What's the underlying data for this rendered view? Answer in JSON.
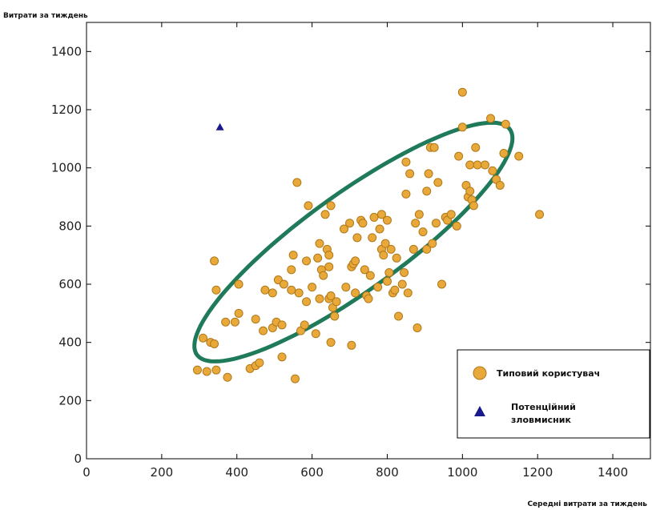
{
  "chart_data": {
    "type": "scatter",
    "ylabel": "Витрати за тиждень",
    "xlabel": "Середні витрати за тиждень",
    "xlim": [
      0,
      1500
    ],
    "ylim": [
      0,
      1500
    ],
    "xticks": [
      "0",
      "200",
      "400",
      "600",
      "800",
      "1000",
      "1200",
      "1400"
    ],
    "yticks": [
      "0",
      "200",
      "400",
      "600",
      "800",
      "1000",
      "1200",
      "1400"
    ],
    "legend_position": "bottom-right",
    "colors": {
      "typical": "#e8a93a",
      "typical_edge": "#b07818",
      "malicious": "#1a1a8c",
      "ellipse": "#1f7a5a"
    },
    "series": [
      {
        "name": "Типовий користувач",
        "marker": "circle",
        "points": [
          [
            295,
            305
          ],
          [
            320,
            300
          ],
          [
            345,
            305
          ],
          [
            375,
            280
          ],
          [
            310,
            415
          ],
          [
            330,
            400
          ],
          [
            340,
            395
          ],
          [
            345,
            580
          ],
          [
            340,
            680
          ],
          [
            370,
            470
          ],
          [
            395,
            470
          ],
          [
            405,
            500
          ],
          [
            405,
            600
          ],
          [
            435,
            310
          ],
          [
            450,
            320
          ],
          [
            460,
            330
          ],
          [
            450,
            480
          ],
          [
            470,
            440
          ],
          [
            475,
            580
          ],
          [
            495,
            570
          ],
          [
            495,
            450
          ],
          [
            505,
            470
          ],
          [
            510,
            615
          ],
          [
            520,
            350
          ],
          [
            520,
            460
          ],
          [
            525,
            600
          ],
          [
            545,
            580
          ],
          [
            545,
            650
          ],
          [
            550,
            700
          ],
          [
            555,
            275
          ],
          [
            560,
            950
          ],
          [
            565,
            570
          ],
          [
            570,
            440
          ],
          [
            580,
            460
          ],
          [
            585,
            540
          ],
          [
            585,
            680
          ],
          [
            590,
            870
          ],
          [
            600,
            590
          ],
          [
            610,
            430
          ],
          [
            615,
            690
          ],
          [
            620,
            740
          ],
          [
            620,
            550
          ],
          [
            625,
            650
          ],
          [
            630,
            630
          ],
          [
            635,
            840
          ],
          [
            640,
            720
          ],
          [
            645,
            700
          ],
          [
            645,
            660
          ],
          [
            645,
            550
          ],
          [
            650,
            560
          ],
          [
            650,
            400
          ],
          [
            650,
            870
          ],
          [
            655,
            520
          ],
          [
            660,
            490
          ],
          [
            665,
            540
          ],
          [
            685,
            790
          ],
          [
            690,
            590
          ],
          [
            700,
            810
          ],
          [
            705,
            390
          ],
          [
            705,
            660
          ],
          [
            710,
            670
          ],
          [
            715,
            570
          ],
          [
            715,
            680
          ],
          [
            720,
            760
          ],
          [
            730,
            820
          ],
          [
            735,
            810
          ],
          [
            740,
            650
          ],
          [
            745,
            560
          ],
          [
            750,
            550
          ],
          [
            755,
            630
          ],
          [
            760,
            760
          ],
          [
            765,
            830
          ],
          [
            775,
            590
          ],
          [
            780,
            790
          ],
          [
            785,
            840
          ],
          [
            785,
            720
          ],
          [
            790,
            700
          ],
          [
            795,
            740
          ],
          [
            800,
            610
          ],
          [
            800,
            820
          ],
          [
            805,
            640
          ],
          [
            810,
            720
          ],
          [
            815,
            570
          ],
          [
            820,
            580
          ],
          [
            825,
            690
          ],
          [
            830,
            490
          ],
          [
            840,
            600
          ],
          [
            845,
            640
          ],
          [
            850,
            1020
          ],
          [
            850,
            910
          ],
          [
            855,
            570
          ],
          [
            860,
            980
          ],
          [
            870,
            720
          ],
          [
            875,
            810
          ],
          [
            880,
            450
          ],
          [
            885,
            840
          ],
          [
            895,
            780
          ],
          [
            905,
            920
          ],
          [
            905,
            720
          ],
          [
            910,
            980
          ],
          [
            915,
            1070
          ],
          [
            920,
            740
          ],
          [
            925,
            1070
          ],
          [
            930,
            810
          ],
          [
            935,
            950
          ],
          [
            945,
            600
          ],
          [
            955,
            830
          ],
          [
            960,
            820
          ],
          [
            970,
            840
          ],
          [
            985,
            800
          ],
          [
            990,
            1040
          ],
          [
            1000,
            1140
          ],
          [
            1000,
            1260
          ],
          [
            1010,
            940
          ],
          [
            1015,
            900
          ],
          [
            1020,
            1010
          ],
          [
            1020,
            920
          ],
          [
            1025,
            890
          ],
          [
            1030,
            870
          ],
          [
            1035,
            1070
          ],
          [
            1040,
            1010
          ],
          [
            1060,
            1010
          ],
          [
            1075,
            1170
          ],
          [
            1080,
            990
          ],
          [
            1090,
            960
          ],
          [
            1100,
            940
          ],
          [
            1110,
            1050
          ],
          [
            1115,
            1150
          ],
          [
            1150,
            1040
          ],
          [
            1205,
            840
          ]
        ]
      },
      {
        "name": "Потенційний зловмисник",
        "marker": "triangle",
        "points": [
          [
            355,
            1140
          ]
        ]
      }
    ],
    "annotations": [
      {
        "type": "ellipse",
        "center": [
          710,
          745
        ],
        "semi_major": 570,
        "semi_minor": 150,
        "angle_deg": 44
      }
    ]
  }
}
